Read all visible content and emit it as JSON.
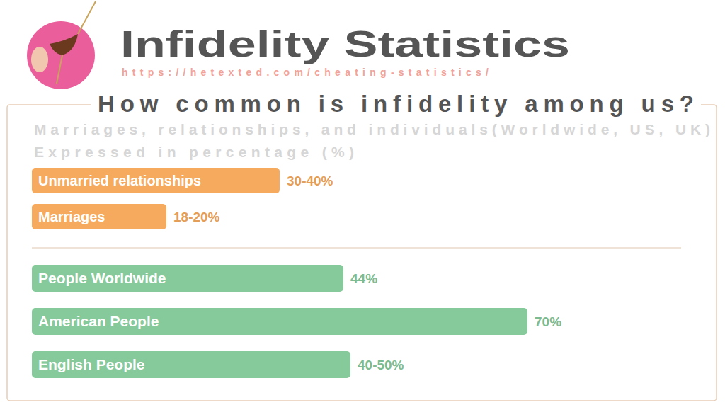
{
  "chart_data": {
    "type": "bar",
    "orientation": "horizontal",
    "title": "Infidelity Statistics",
    "subtitle": "How common is infidelity among us?",
    "annotations": [
      "https://hetexted.com/cheating-statistics/",
      "Marriages, relationships, and individuals(Worldwide, US, UK)",
      "Expressed in percentage (%)"
    ],
    "categories": [
      "Unmarried relationships",
      "Marriages",
      "People Worldwide",
      "American People",
      "English People"
    ],
    "values": [
      35,
      19,
      44,
      70,
      45
    ],
    "value_labels": [
      "30-40%",
      "18-20%",
      "44%",
      "70%",
      "40-50%"
    ],
    "colors": [
      "#f5aa5e",
      "#f5aa5e",
      "#86c99b",
      "#86c99b",
      "#86c99b"
    ],
    "xlim": [
      0,
      72
    ],
    "data_labels": true,
    "tick_labels": false,
    "grid": false
  }
}
